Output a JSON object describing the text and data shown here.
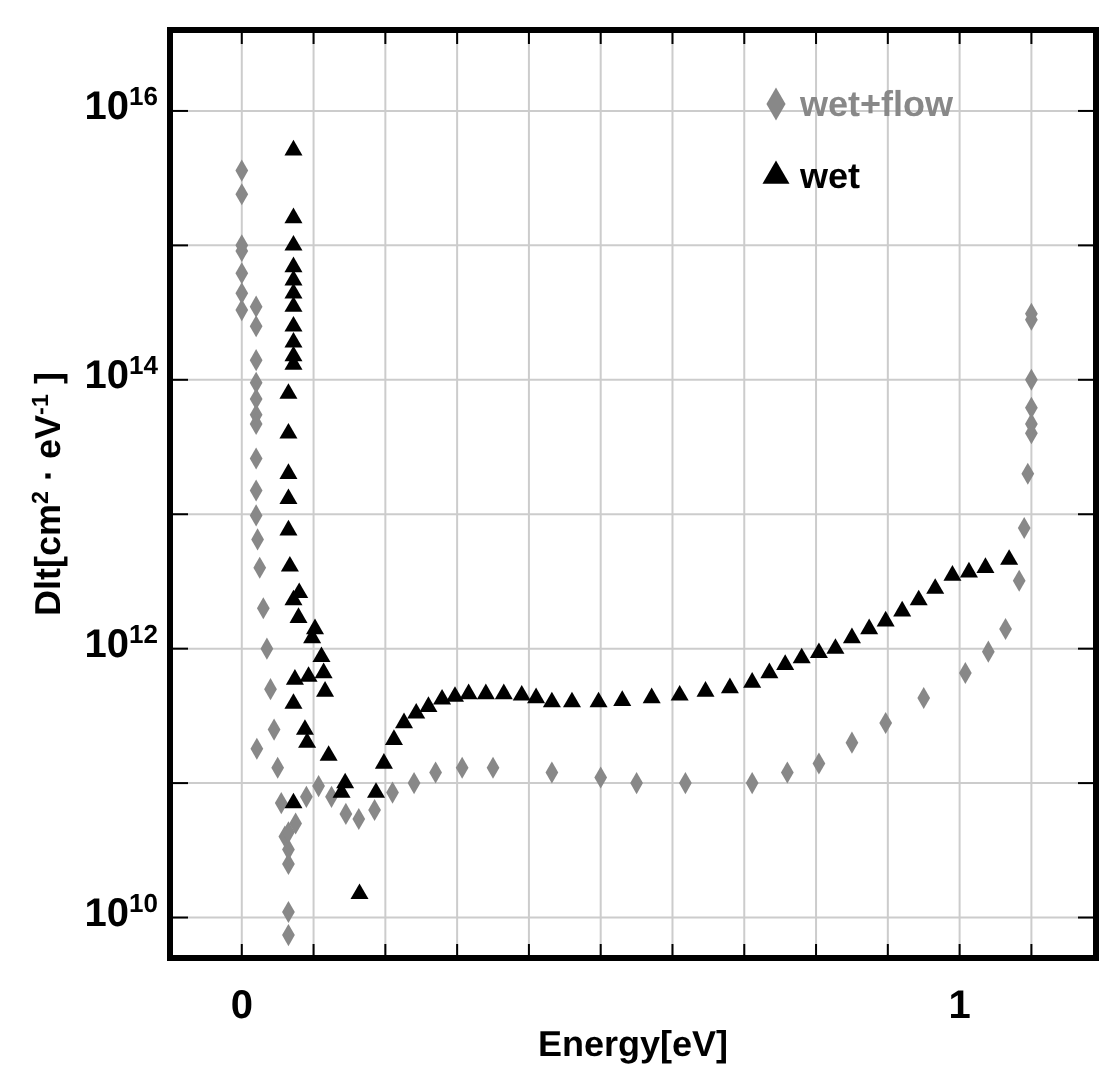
{
  "chart_data": {
    "type": "scatter",
    "xlabel": "Energy[eV]",
    "ylabel": "Dlt[cm$^{2}$ · eV$^{-1}$ ]",
    "log": "y",
    "grid": true,
    "legend": "top right",
    "xlim": [
      -0.1,
      1.19
    ],
    "ylim": [
      5000000000.0,
      4e+16
    ],
    "xticks": [
      0,
      {
        "value": 0.1,
        "label": null
      },
      {
        "value": 0.2,
        "label": null
      },
      {
        "value": 0.3,
        "label": null
      },
      {
        "value": 0.4,
        "label": null
      },
      {
        "value": 0.5,
        "label": null
      },
      {
        "value": 0.6,
        "label": null
      },
      {
        "value": 0.7,
        "label": null
      },
      {
        "value": 0.8,
        "label": null
      },
      {
        "value": 0.9,
        "label": null
      },
      1,
      {
        "value": 1.1,
        "label": null
      }
    ],
    "yticks": [
      {
        "value": 10000000000.0,
        "label": "10$^{10}$"
      },
      {
        "value": 100000000000.0,
        "label": null
      },
      {
        "value": 1000000000000.0,
        "label": "10$^{12}$"
      },
      {
        "value": 10000000000000.0,
        "label": null
      },
      {
        "value": 100000000000000.0,
        "label": "10$^{14}$"
      },
      {
        "value": 1000000000000000.0,
        "label": null
      },
      {
        "value": 1e+16,
        "label": "10$^{16}$"
      }
    ],
    "series": [
      {
        "name": "wet+flow",
        "color": "#888888",
        "marker": "diamond",
        "x": [
          0,
          0,
          0,
          0,
          0,
          0,
          0,
          0.02,
          0.02,
          0.02,
          0.02,
          0.02,
          0.02,
          0.02,
          0.02,
          0.02,
          0.02,
          0.021,
          0.022,
          0.025,
          0.03,
          0.035,
          0.04,
          0.045,
          0.05,
          0.055,
          0.06,
          0.065,
          0.065,
          0.065,
          0.065,
          0.065,
          0.075,
          0.09,
          0.107,
          0.125,
          0.145,
          0.163,
          0.185,
          0.21,
          0.24,
          0.27,
          0.307,
          0.35,
          0.432,
          0.5,
          0.55,
          0.618,
          0.711,
          0.76,
          0.804,
          0.85,
          0.897,
          0.95,
          1.008,
          1.04,
          1.064,
          1.083,
          1.09,
          1.095,
          1.1,
          1.1,
          1.1,
          1.1,
          1.1,
          1.1
        ],
        "values": [
          3600000000000000.0,
          2400000000000000.0,
          1000000000000000.0,
          910000000000000.0,
          620000000000000.0,
          440000000000000.0,
          330000000000000.0,
          350000000000000.0,
          250000000000000.0,
          140000000000000.0,
          95000000000000.0,
          72000000000000.0,
          55000000000000.0,
          47000000000000.0,
          26000000000000.0,
          15000000000000.0,
          9800000000000.0,
          180000000000.0,
          6500000000000.0,
          4000000000000.0,
          2000000000000.0,
          1000000000000.0,
          500000000000.0,
          250000000000.0,
          130000000000.0,
          71000000000.0,
          40000000000.0,
          25000000000.0,
          32000000000.0,
          43000000000.0,
          11000000000.0,
          7400000000.0,
          50000000000.0,
          79000000000.0,
          95000000000.0,
          79000000000.0,
          59000000000.0,
          54000000000.0,
          63000000000.0,
          85000000000.0,
          100000000000.0,
          120000000000.0,
          130000000000.0,
          130000000000.0,
          120000000000.0,
          110000000000.0,
          100000000000.0,
          100000000000.0,
          100000000000.0,
          120000000000.0,
          140000000000.0,
          200000000000.0,
          280000000000.0,
          430000000000.0,
          660000000000.0,
          950000000000.0,
          1400000000000.0,
          3200000000000.0,
          7900000000000.0,
          20000000000000.0,
          40000000000000.0,
          47000000000000.0,
          62000000000000.0,
          100000000000000.0,
          280000000000000.0,
          310000000000000.0
        ]
      },
      {
        "name": "wet",
        "color": "#000000",
        "marker": "triangle",
        "x": [
          0.072,
          0.072,
          0.072,
          0.072,
          0.072,
          0.072,
          0.072,
          0.072,
          0.072,
          0.072,
          0.072,
          0.065,
          0.065,
          0.065,
          0.065,
          0.065,
          0.067,
          0.072,
          0.08,
          0.079,
          0.102,
          0.098,
          0.111,
          0.074,
          0.093,
          0.114,
          0.116,
          0.072,
          0.088,
          0.091,
          0.121,
          0.144,
          0.139,
          0.072,
          0.187,
          0.164,
          0.198,
          0.212,
          0.226,
          0.243,
          0.26,
          0.279,
          0.297,
          0.316,
          0.34,
          0.365,
          0.39,
          0.41,
          0.432,
          0.46,
          0.497,
          0.53,
          0.571,
          0.61,
          0.646,
          0.68,
          0.711,
          0.735,
          0.757,
          0.78,
          0.804,
          0.827,
          0.85,
          0.874,
          0.897,
          0.92,
          0.943,
          0.966,
          0.99,
          1.013,
          1.036,
          1.069
        ],
        "values": [
          5100000000000000.0,
          1600000000000000.0,
          1000000000000000.0,
          690000000000000.0,
          550000000000000.0,
          440000000000000.0,
          350000000000000.0,
          250000000000000.0,
          190000000000000.0,
          150000000000000.0,
          130000000000000.0,
          79000000000000.0,
          40000000000000.0,
          20000000000000.0,
          13000000000000.0,
          7600000000000.0,
          4100000000000.0,
          2300000000000.0,
          2600000000000.0,
          1700000000000.0,
          1400000000000.0,
          1200000000000.0,
          870000000000.0,
          590000000000.0,
          620000000000.0,
          660000000000.0,
          480000000000.0,
          390000000000.0,
          250000000000.0,
          200000000000.0,
          160000000000.0,
          100000000000.0,
          85000000000.0,
          71000000000.0,
          85000000000.0,
          15000000000.0,
          140000000000.0,
          210000000000.0,
          280000000000.0,
          330000000000.0,
          370000000000.0,
          420000000000.0,
          440000000000.0,
          460000000000.0,
          460000000000.0,
          460000000000.0,
          450000000000.0,
          430000000000.0,
          400000000000.0,
          400000000000.0,
          400000000000.0,
          410000000000.0,
          430000000000.0,
          450000000000.0,
          480000000000.0,
          510000000000.0,
          560000000000.0,
          660000000000.0,
          760000000000.0,
          850000000000.0,
          930000000000.0,
          1000000000000.0,
          1200000000000.0,
          1400000000000.0,
          1600000000000.0,
          1900000000000.0,
          2300000000000.0,
          2800000000000.0,
          3500000000000.0,
          3700000000000.0,
          4000000000000.0,
          4600000000000.0
        ]
      }
    ]
  }
}
